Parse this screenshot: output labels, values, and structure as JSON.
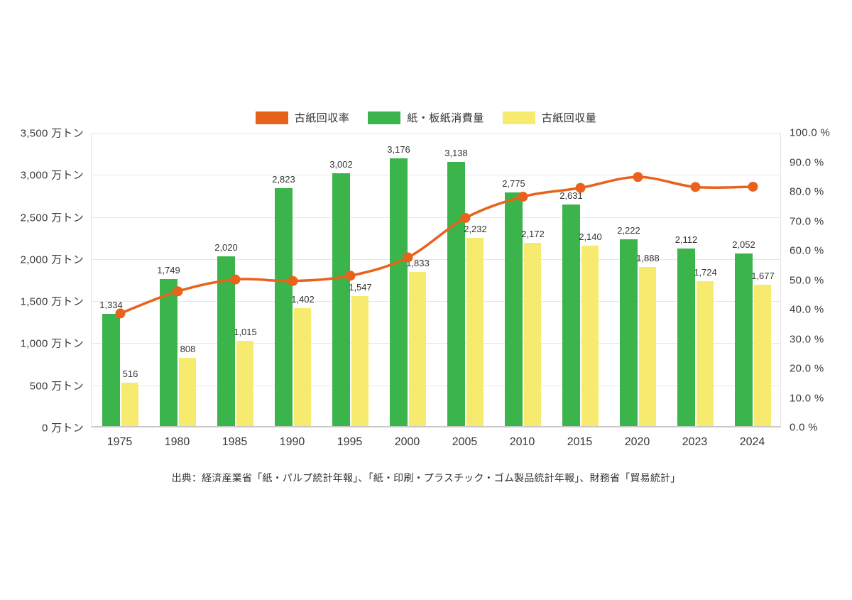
{
  "legend": {
    "items": [
      {
        "id": "recovery-rate",
        "label": "古紙回収率",
        "color": "#e8621b"
      },
      {
        "id": "paper-consumption",
        "label": "紙・板紙消費量",
        "color": "#3cb44c"
      },
      {
        "id": "recovered-paper",
        "label": "古紙回収量",
        "color": "#f6eb6e"
      }
    ]
  },
  "chart_data": {
    "type": "bar",
    "subtype": "bar+line-combo",
    "categories": [
      "1975",
      "1980",
      "1985",
      "1990",
      "1995",
      "2000",
      "2005",
      "2010",
      "2015",
      "2020",
      "2023",
      "2024"
    ],
    "series": [
      {
        "name": "古紙回収率",
        "type": "line",
        "axis": "right",
        "color": "#e8621b",
        "values": [
          38.7,
          46.2,
          50.2,
          49.7,
          51.5,
          57.7,
          71.1,
          78.3,
          81.3,
          85.0,
          81.6,
          81.7
        ]
      },
      {
        "name": "紙・板紙消費量",
        "type": "bar",
        "axis": "left",
        "color": "#3cb44c",
        "values": [
          1334,
          1749,
          2020,
          2823,
          3002,
          3176,
          3138,
          2775,
          2631,
          2222,
          2112,
          2052
        ],
        "value_labels": [
          "1,334",
          "1,749",
          "2,020",
          "2,823",
          "3,002",
          "3,176",
          "3,138",
          "2,775",
          "2,631",
          "2,222",
          "2,112",
          "2,052"
        ]
      },
      {
        "name": "古紙回収量",
        "type": "bar",
        "axis": "left",
        "color": "#f6eb6e",
        "values": [
          516,
          808,
          1015,
          1402,
          1547,
          1833,
          2232,
          2172,
          2140,
          1888,
          1724,
          1677
        ],
        "value_labels": [
          "516",
          "808",
          "1,015",
          "1,402",
          "1,547",
          "1,833",
          "2,232",
          "2,172",
          "2,140",
          "1,888",
          "1,724",
          "1,677"
        ]
      }
    ],
    "left_axis": {
      "min": 0,
      "max": 3500,
      "step": 500,
      "unit": "万トン",
      "tick_labels": [
        "3,500 万トン",
        "3,000 万トン",
        "2,500 万トン",
        "2,000 万トン",
        "1,500 万トン",
        "1,000 万トン",
        "500 万トン",
        "0 万トン"
      ]
    },
    "right_axis": {
      "min": 0,
      "max": 100,
      "step": 10,
      "unit": "%",
      "tick_labels": [
        "100.0 %",
        "90.0 %",
        "80.0 %",
        "70.0 %",
        "60.0 %",
        "50.0 %",
        "40.0 %",
        "30.0 %",
        "20.0 %",
        "10.0 %",
        "0.0 %"
      ]
    },
    "grid": true,
    "legend_position": "top",
    "colors": {
      "gridline": "#e7e7e7",
      "axis_line": "#c9c9c9",
      "text": "#333333"
    }
  },
  "source": "出典：経済産業省「紙・パルプ統計年報」、「紙・印刷・プラスチック・ゴム製品統計年報」、財務省「貿易統計」"
}
